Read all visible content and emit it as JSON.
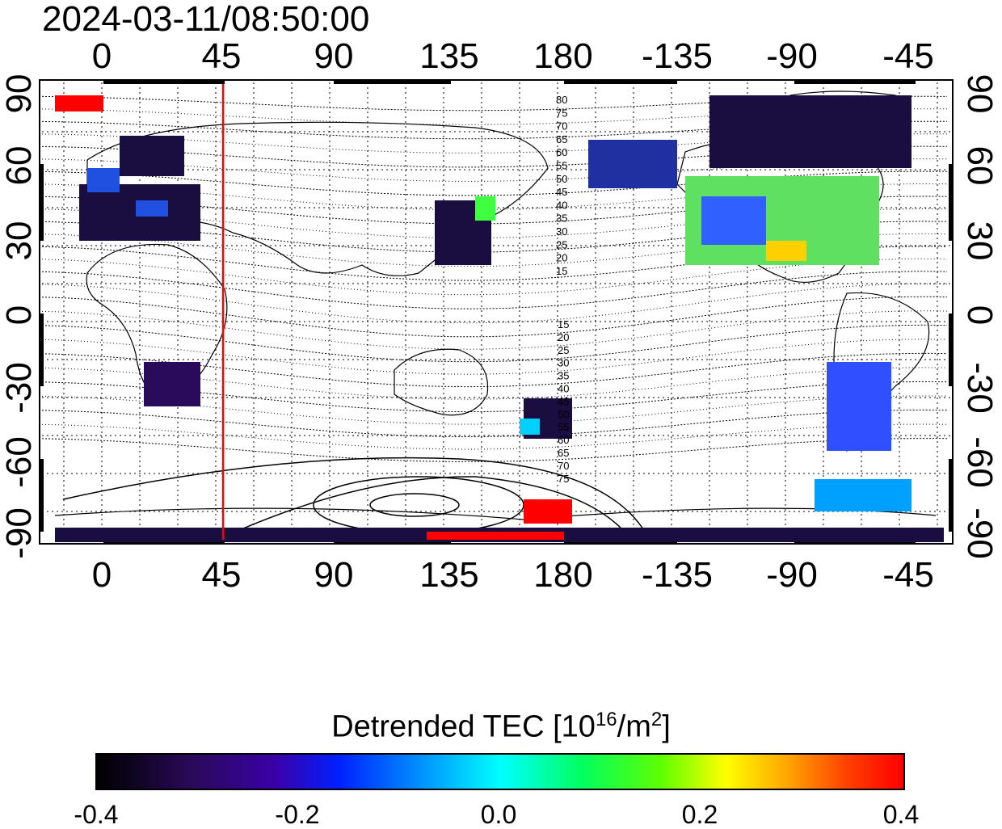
{
  "timestamp": "2024-03-11/08:50:00",
  "map": {
    "top_lon_ticks": [
      "0",
      "45",
      "90",
      "135",
      "180",
      "-135",
      "-90",
      "-45"
    ],
    "bottom_lon_ticks": [
      "0",
      "45",
      "90",
      "135",
      "180",
      "-135",
      "-90",
      "-45"
    ],
    "left_lat_ticks": [
      "90",
      "60",
      "30",
      "0",
      "-30",
      "-60",
      "-90"
    ],
    "right_lat_ticks": [
      "90",
      "60",
      "30",
      "0",
      "-30",
      "-60",
      "-90"
    ],
    "contour_labels_north": [
      "80",
      "75",
      "70",
      "65",
      "60",
      "55",
      "50",
      "45",
      "40",
      "35",
      "30",
      "25",
      "20",
      "15"
    ],
    "contour_labels_south": [
      "15",
      "20",
      "25",
      "30",
      "35",
      "40",
      "45",
      "50",
      "55",
      "60",
      "65",
      "70",
      "75"
    ],
    "marker_line_lon": 48,
    "colors": {
      "marker_line": "#ff0000",
      "grid": "#000000",
      "coast": "#000000"
    }
  },
  "colorbar": {
    "title_main": "Detrended TEC  [10",
    "title_exp": "16",
    "title_mid": "/m",
    "title_exp2": "2",
    "title_end": "]",
    "min": -0.4,
    "max": 0.4,
    "ticks": [
      "-0.4",
      "-0.2",
      "0.0",
      "0.2",
      "0.4"
    ],
    "colors": [
      "#000000",
      "#3a00a8",
      "#0020ff",
      "#00ffff",
      "#00ff60",
      "#ffff00",
      "#ff4000",
      "#ff0000"
    ]
  }
}
